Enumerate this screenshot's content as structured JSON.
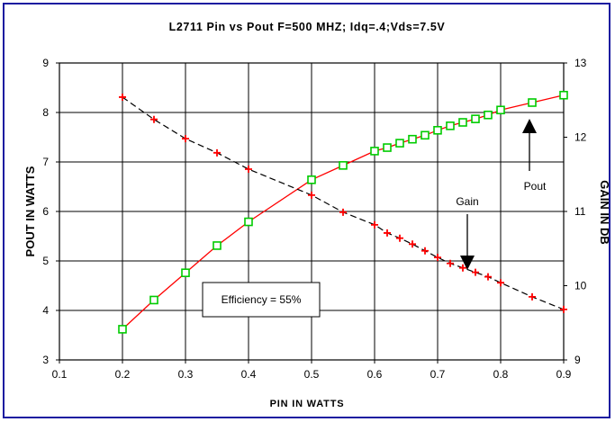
{
  "chart_data": {
    "type": "line",
    "title": "L2711 Pin vs Pout  F=500 MHZ; Idq=.4;Vds=7.5V",
    "xlabel": "PIN IN WATTS",
    "ylabel": "POUT IN WATTS",
    "y2label": "GAIN IN DB",
    "xlim": [
      0.1,
      0.9
    ],
    "ylim": [
      3,
      9
    ],
    "y2lim": [
      9,
      13
    ],
    "x_ticks": [
      "0.1",
      "0.2",
      "0.3",
      "0.4",
      "0.5",
      "0.6",
      "0.7",
      "0.8",
      "0.9"
    ],
    "y_ticks": [
      "3",
      "4",
      "5",
      "6",
      "7",
      "8",
      "9"
    ],
    "y2_ticks": [
      "9",
      "10",
      "11",
      "12",
      "13"
    ],
    "grid": true,
    "colors": {
      "pout_line": "#ff0000",
      "pout_marker": "#00cc00",
      "gain_line": "#000000",
      "gain_marker": "#ff0000",
      "frame": "#1a1aa0"
    },
    "series": [
      {
        "name": "Pout",
        "axis": "left",
        "x": [
          0.2,
          0.25,
          0.3,
          0.35,
          0.4,
          0.5,
          0.55,
          0.6,
          0.62,
          0.64,
          0.66,
          0.68,
          0.7,
          0.72,
          0.74,
          0.76,
          0.78,
          0.8,
          0.85,
          0.9
        ],
        "y": [
          3.62,
          4.21,
          4.76,
          5.31,
          5.79,
          6.64,
          6.93,
          7.22,
          7.29,
          7.38,
          7.46,
          7.54,
          7.64,
          7.73,
          7.8,
          7.87,
          7.95,
          8.05,
          8.2,
          8.35
        ]
      },
      {
        "name": "Gain",
        "axis": "right",
        "x": [
          0.2,
          0.25,
          0.3,
          0.35,
          0.4,
          0.5,
          0.55,
          0.6,
          0.62,
          0.64,
          0.66,
          0.68,
          0.7,
          0.72,
          0.74,
          0.76,
          0.78,
          0.8,
          0.85,
          0.9
        ],
        "y": [
          12.54,
          12.24,
          11.98,
          11.79,
          11.57,
          11.22,
          10.99,
          10.82,
          10.71,
          10.64,
          10.56,
          10.47,
          10.38,
          10.3,
          10.24,
          10.18,
          10.12,
          10.04,
          9.85,
          9.68
        ]
      }
    ],
    "annotations": {
      "efficiency": "Efficiency = 55%",
      "gain_label": "Gain",
      "pout_label": "Pout"
    }
  }
}
